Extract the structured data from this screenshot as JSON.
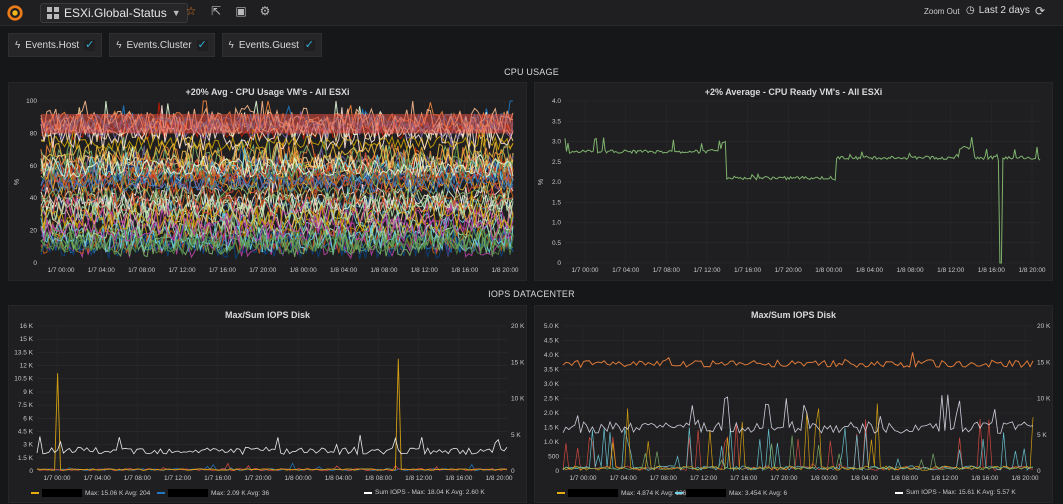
{
  "toolbar": {
    "dashboard_title": "ESXi.Global-Status",
    "zoom_out_label": "Zoom Out",
    "time_range_label": "Last 2 days",
    "icons": [
      "grafana-logo-icon",
      "dashboard-grid-icon",
      "caret-down-icon",
      "star-icon",
      "share-icon",
      "save-icon",
      "gear-icon",
      "clock-icon",
      "refresh-icon"
    ]
  },
  "templating": [
    {
      "label": "Events.Host",
      "checked": true
    },
    {
      "label": "Events.Cluster",
      "checked": true
    },
    {
      "label": "Events.Guest",
      "checked": true
    }
  ],
  "rows": [
    {
      "title": "CPU USAGE"
    },
    {
      "title": "IOPS DATACENTER"
    }
  ],
  "x_ticks": [
    "1/7 00:00",
    "1/7 04:00",
    "1/7 08:00",
    "1/7 12:00",
    "1/7 16:00",
    "1/7 20:00",
    "1/8 00:00",
    "1/8 04:00",
    "1/8 08:00",
    "1/8 12:00",
    "1/8 16:00",
    "1/8 20:00"
  ],
  "panels": [
    {
      "title": "+20% Avg - CPU Usage VM's - All ESXi",
      "y_label": "%",
      "y_ticks": [
        "0",
        "20",
        "40",
        "60",
        "80",
        "100"
      ],
      "ylim": [
        0,
        100
      ]
    },
    {
      "title": "+2% Average - CPU Ready VM's - All ESXi",
      "y_label": "%",
      "y_ticks": [
        "0",
        "0.5",
        "1.0",
        "1.5",
        "2.0",
        "2.5",
        "3.0",
        "3.5",
        "4.0"
      ],
      "ylim": [
        0,
        4
      ],
      "series": [
        {
          "color": "#7eb26d",
          "levels": [
            {
              "x": 0.0,
              "y": 2.75
            },
            {
              "x": 0.3,
              "y": 2.8
            },
            {
              "x": 0.33,
              "y": 3.0
            },
            {
              "x": 0.34,
              "y": 2.1
            },
            {
              "x": 0.56,
              "y": 2.05
            },
            {
              "x": 0.57,
              "y": 2.6
            },
            {
              "x": 0.82,
              "y": 2.65
            },
            {
              "x": 0.83,
              "y": 2.85
            },
            {
              "x": 0.86,
              "y": 2.6
            },
            {
              "x": 0.91,
              "y": 2.55
            },
            {
              "x": 0.915,
              "y": 0.0
            },
            {
              "x": 0.92,
              "y": 2.6
            },
            {
              "x": 1.0,
              "y": 2.55
            }
          ]
        }
      ]
    },
    {
      "title": "Max/Sum IOPS Disk",
      "y_ticks_left": [
        "0",
        "1.5 K",
        "3 K",
        "4.5 K",
        "6 K",
        "7.5 K",
        "9 K",
        "10.5 K",
        "12 K",
        "13.5 K",
        "15 K",
        "16 K"
      ],
      "y_ticks_right": [
        "0",
        "5 K",
        "10 K",
        "15 K",
        "20 K"
      ],
      "legend": [
        {
          "color": "#e5ac0e",
          "text": "Max: 15.06 K  Avg: 204"
        },
        {
          "color": "#1f78c1",
          "text": "Max: 2.09 K  Avg: 36"
        },
        {
          "color": "#ffffff",
          "text": "Sum IOPS -    Max: 18.04 K  Avg: 2.60 K"
        }
      ]
    },
    {
      "title": "Max/Sum IOPS Disk",
      "y_ticks_left": [
        "0",
        "500",
        "1.0 K",
        "1.5 K",
        "2.0 K",
        "2.5 K",
        "3.0 K",
        "3.5 K",
        "4.0 K",
        "4.5 K",
        "5.0 K"
      ],
      "y_ticks_right": [
        "0",
        "5 K",
        "10 K",
        "15 K",
        "20 K"
      ],
      "legend": [
        {
          "color": "#e5ac0e",
          "text": "Max: 4.874 K  Avg: 136"
        },
        {
          "color": "#6ed0e0",
          "text": "Max: 3.454 K  Avg: 6"
        },
        {
          "color": "#ffffff",
          "text": "Sum IOPS -    Max: 15.61 K  Avg: 5.57 K"
        }
      ]
    }
  ]
}
